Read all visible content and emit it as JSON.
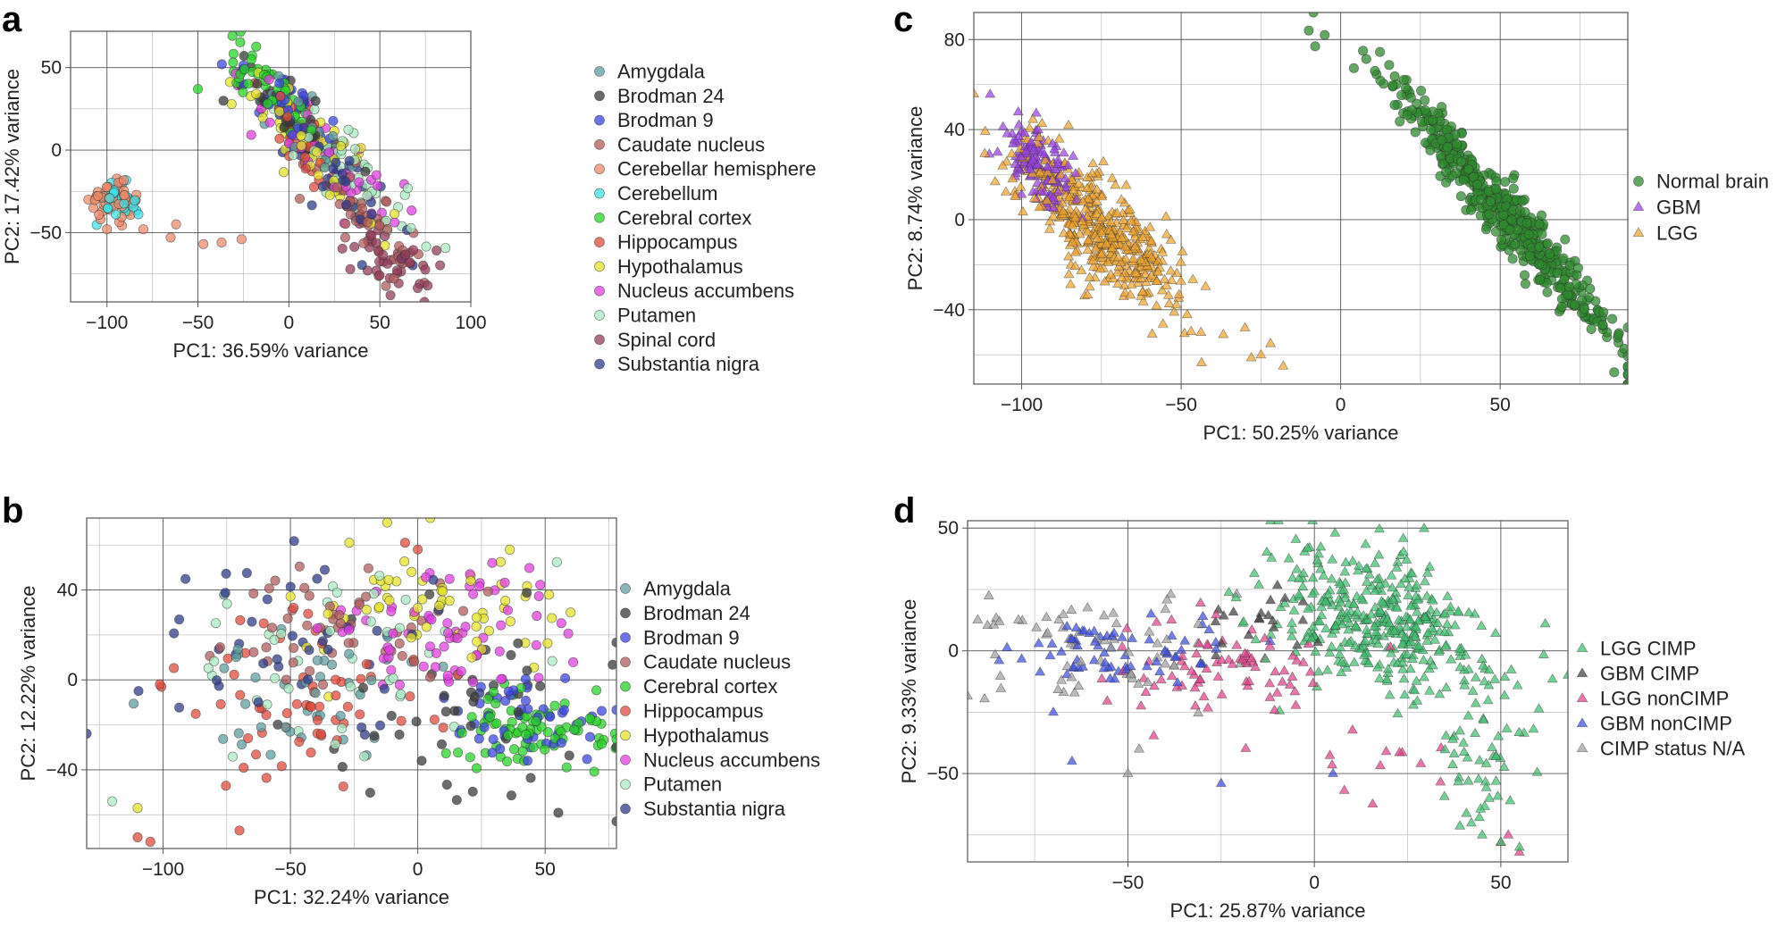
{
  "chart_data": [
    {
      "panel": "a",
      "type": "scatter",
      "xlabel": "PC1: 36.59% variance",
      "ylabel": "PC2: 17.42% variance",
      "xlim": [
        -120,
        100
      ],
      "ylim": [
        -92,
        72
      ],
      "xticks": [
        -100,
        -50,
        0,
        50,
        100
      ],
      "yticks": [
        -50,
        0,
        50
      ],
      "marker": "circle",
      "legend_position": "right",
      "series": [
        {
          "name": "Amygdala",
          "color": "#5f9ea0",
          "clusters": [
            {
              "cx": 5,
              "cy": 15,
              "sx": 16,
              "sy": 20,
              "n": 30,
              "rho": -0.85
            }
          ]
        },
        {
          "name": "Brodman 24",
          "color": "#3a3a3a",
          "clusters": [
            {
              "cx": 0,
              "cy": 25,
              "sx": 18,
              "sy": 20,
              "n": 30,
              "rho": -0.85
            }
          ]
        },
        {
          "name": "Brodman 9",
          "color": "#3b45e0",
          "clusters": [
            {
              "cx": 0,
              "cy": 27,
              "sx": 18,
              "sy": 20,
              "n": 35,
              "rho": -0.85
            }
          ]
        },
        {
          "name": "Caudate nucleus",
          "color": "#b15c5c",
          "clusters": [
            {
              "cx": 45,
              "cy": -45,
              "sx": 15,
              "sy": 18,
              "n": 50,
              "rho": -0.8
            }
          ]
        },
        {
          "name": "Cerebellar hemisphere",
          "color": "#ee8a6a",
          "clusters": [
            {
              "cx": -97,
              "cy": -30,
              "sx": 6,
              "sy": 5,
              "n": 60,
              "rho": 0
            }
          ],
          "extra_points": [
            [
              -47,
              -57
            ],
            [
              -37,
              -56
            ],
            [
              -26,
              -54
            ],
            [
              -62,
              -45
            ],
            [
              -65,
              -53
            ],
            [
              -80,
              -48
            ],
            [
              -100,
              -48
            ]
          ]
        },
        {
          "name": "Cerebellum",
          "color": "#3ee0e4",
          "clusters": [
            {
              "cx": -92,
              "cy": -31,
              "sx": 7,
              "sy": 5,
              "n": 40,
              "rho": 0
            }
          ]
        },
        {
          "name": "Cerebral cortex",
          "color": "#27d427",
          "clusters": [
            {
              "cx": -10,
              "cy": 35,
              "sx": 12,
              "sy": 16,
              "n": 50,
              "rho": -0.85
            }
          ],
          "extra_points": [
            [
              -50,
              37
            ]
          ]
        },
        {
          "name": "Hippocampus",
          "color": "#e24a3b",
          "clusters": [
            {
              "cx": 10,
              "cy": 5,
              "sx": 18,
              "sy": 22,
              "n": 35,
              "rho": -0.85
            }
          ]
        },
        {
          "name": "Hypothalamus",
          "color": "#e6e22a",
          "clusters": [
            {
              "cx": 15,
              "cy": 0,
              "sx": 20,
              "sy": 22,
              "n": 45,
              "rho": -0.85
            }
          ]
        },
        {
          "name": "Nucleus accumbens",
          "color": "#e13fe2",
          "clusters": [
            {
              "cx": 20,
              "cy": 0,
              "sx": 22,
              "sy": 25,
              "n": 50,
              "rho": -0.85
            }
          ]
        },
        {
          "name": "Putamen",
          "color": "#a8ebc2",
          "clusters": [
            {
              "cx": 35,
              "cy": -15,
              "sx": 20,
              "sy": 22,
              "n": 45,
              "rho": -0.85
            }
          ]
        },
        {
          "name": "Spinal cord",
          "color": "#943c58",
          "clusters": [
            {
              "cx": 55,
              "cy": -65,
              "sx": 12,
              "sy": 12,
              "n": 45,
              "rho": -0.5
            }
          ]
        },
        {
          "name": "Substantia nigra",
          "color": "#2e3b8a",
          "clusters": [
            {
              "cx": 30,
              "cy": -20,
              "sx": 20,
              "sy": 25,
              "n": 35,
              "rho": -0.85
            }
          ]
        }
      ]
    },
    {
      "panel": "b",
      "type": "scatter",
      "xlabel": "PC1: 32.24% variance",
      "ylabel": "PC2: 12.22% variance",
      "xlim": [
        -130,
        78
      ],
      "ylim": [
        -75,
        72
      ],
      "xticks": [
        -100,
        -50,
        0,
        50
      ],
      "yticks": [
        -40,
        0,
        40
      ],
      "marker": "circle",
      "legend_position": "right",
      "series": [
        {
          "name": "Amygdala",
          "color": "#5f9ea0",
          "clusters": [
            {
              "cx": -40,
              "cy": -5,
              "sx": 30,
              "sy": 22,
              "n": 40,
              "rho": 0
            }
          ]
        },
        {
          "name": "Brodman 24",
          "color": "#3a3a3a",
          "clusters": [
            {
              "cx": 20,
              "cy": -20,
              "sx": 35,
              "sy": 22,
              "n": 45,
              "rho": 0
            }
          ]
        },
        {
          "name": "Brodman 9",
          "color": "#3b45e0",
          "clusters": [
            {
              "cx": 45,
              "cy": -20,
              "sx": 15,
              "sy": 10,
              "n": 50,
              "rho": 0
            }
          ]
        },
        {
          "name": "Caudate nucleus",
          "color": "#b15c5c",
          "clusters": [
            {
              "cx": -20,
              "cy": 25,
              "sx": 25,
              "sy": 15,
              "n": 50,
              "rho": 0
            }
          ]
        },
        {
          "name": "Cerebral cortex",
          "color": "#27d427",
          "clusters": [
            {
              "cx": 45,
              "cy": -22,
              "sx": 15,
              "sy": 9,
              "n": 80,
              "rho": 0
            }
          ]
        },
        {
          "name": "Hippocampus",
          "color": "#e24a3b",
          "clusters": [
            {
              "cx": -45,
              "cy": -10,
              "sx": 25,
              "sy": 20,
              "n": 60,
              "rho": 0
            }
          ],
          "extra_points": [
            [
              -110,
              -70
            ],
            [
              -105,
              -72
            ],
            [
              -70,
              -67
            ],
            [
              -5,
              61
            ],
            [
              0,
              58
            ]
          ]
        },
        {
          "name": "Hypothalamus",
          "color": "#e6e22a",
          "clusters": [
            {
              "cx": 5,
              "cy": 30,
              "sx": 25,
              "sy": 14,
              "n": 60,
              "rho": 0
            }
          ],
          "extra_points": [
            [
              -12,
              70
            ],
            [
              -110,
              -57
            ],
            [
              60,
              30
            ]
          ]
        },
        {
          "name": "Nucleus accumbens",
          "color": "#e13fe2",
          "clusters": [
            {
              "cx": 10,
              "cy": 20,
              "sx": 25,
              "sy": 15,
              "n": 70,
              "rho": 0
            }
          ]
        },
        {
          "name": "Putamen",
          "color": "#a8ebc2",
          "clusters": [
            {
              "cx": -30,
              "cy": 10,
              "sx": 35,
              "sy": 22,
              "n": 40,
              "rho": 0
            }
          ],
          "extra_points": [
            [
              -120,
              -54
            ]
          ]
        },
        {
          "name": "Substantia nigra",
          "color": "#2e3b8a",
          "clusters": [
            {
              "cx": -40,
              "cy": 20,
              "sx": 35,
              "sy": 22,
              "n": 45,
              "rho": 0
            }
          ]
        }
      ]
    },
    {
      "panel": "c",
      "type": "scatter",
      "xlabel": "PC1: 50.25% variance",
      "ylabel": "PC2: 8.74% variance",
      "xlim": [
        -115,
        90
      ],
      "ylim": [
        -73,
        92
      ],
      "xticks": [
        -100,
        -50,
        0,
        50
      ],
      "yticks": [
        -40,
        0,
        40,
        80
      ],
      "legend_position": "right",
      "series": [
        {
          "name": "Normal brain",
          "color": "#2e8b2e",
          "marker": "circle",
          "clusters": [
            {
              "cx": 50,
              "cy": 5,
              "sx": 18,
              "sy": 30,
              "n": 550,
              "rho": -0.97
            }
          ],
          "extra_points": [
            [
              -10,
              84
            ],
            [
              -5,
              82
            ],
            [
              -8,
              77
            ],
            [
              7,
              75
            ]
          ]
        },
        {
          "name": "GBM",
          "color": "#9b40e6",
          "marker": "triangle",
          "clusters": [
            {
              "cx": -95,
              "cy": 25,
              "sx": 6,
              "sy": 10,
              "n": 130,
              "rho": -0.6
            }
          ]
        },
        {
          "name": "LGG",
          "color": "#f0a42e",
          "marker": "triangle",
          "clusters": [
            {
              "cx": -75,
              "cy": -5,
              "sx": 14,
              "sy": 20,
              "n": 450,
              "rho": -0.8
            }
          ],
          "extra_points": [
            [
              -22,
              -55
            ],
            [
              -18,
              -65
            ],
            [
              -25,
              -60
            ],
            [
              -30,
              -48
            ]
          ]
        }
      ]
    },
    {
      "panel": "d",
      "type": "scatter",
      "xlabel": "PC1: 25.87% variance",
      "ylabel": "PC2: 9.33% variance",
      "xlim": [
        -93,
        68
      ],
      "ylim": [
        -86,
        53
      ],
      "xticks": [
        -50,
        0,
        50
      ],
      "yticks": [
        -50,
        0,
        50
      ],
      "marker": "triangle",
      "legend_position": "right",
      "series": [
        {
          "name": "LGG CIMP",
          "color": "#3fbf6e",
          "clusters": [
            {
              "cx": 18,
              "cy": 12,
              "sx": 15,
              "sy": 15,
              "n": 380,
              "rho": -0.3
            },
            {
              "cx": 45,
              "cy": -45,
              "sx": 6,
              "sy": 15,
              "n": 50,
              "rho": 0
            }
          ],
          "extra_points": [
            [
              55,
              -80
            ],
            [
              50,
              -78
            ],
            [
              45,
              -75
            ]
          ]
        },
        {
          "name": "GBM CIMP",
          "color": "#404040",
          "clusters": [
            {
              "cx": -15,
              "cy": 10,
              "sx": 15,
              "sy": 8,
              "n": 20,
              "rho": 0
            }
          ]
        },
        {
          "name": "LGG nonCIMP",
          "color": "#e0408a",
          "clusters": [
            {
              "cx": -25,
              "cy": -8,
              "sx": 15,
              "sy": 10,
              "n": 80,
              "rho": 0
            },
            {
              "cx": 20,
              "cy": -45,
              "sx": 10,
              "sy": 12,
              "n": 12,
              "rho": 0
            }
          ],
          "extra_points": [
            [
              50,
              -78
            ],
            [
              55,
              -82
            ],
            [
              52,
              -75
            ]
          ]
        },
        {
          "name": "GBM nonCIMP",
          "color": "#3b4ee0",
          "clusters": [
            {
              "cx": -55,
              "cy": 0,
              "sx": 14,
              "sy": 7,
              "n": 70,
              "rho": 0
            }
          ],
          "extra_points": [
            [
              -65,
              -45
            ],
            [
              -25,
              -54
            ],
            [
              5,
              -50
            ],
            [
              -70,
              -25
            ]
          ]
        },
        {
          "name": "CIMP status N/A",
          "color": "#a0a0a0",
          "clusters": [
            {
              "cx": -55,
              "cy": 0,
              "sx": 20,
              "sy": 12,
              "n": 65,
              "rho": 0
            }
          ],
          "extra_points": [
            [
              -50,
              -50
            ],
            [
              -47,
              -40
            ]
          ]
        }
      ]
    }
  ]
}
